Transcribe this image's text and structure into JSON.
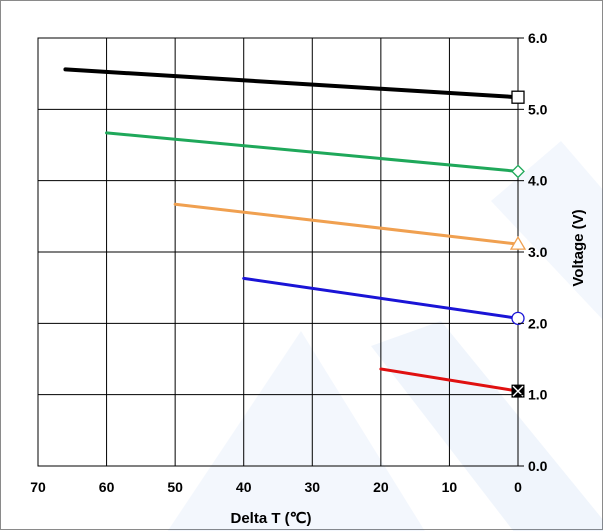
{
  "chart_data": {
    "type": "line",
    "xlabel": "Delta T (℃)",
    "ylabel": "Voltage (V)",
    "xlim": [
      70,
      0
    ],
    "ylim": [
      0,
      6
    ],
    "x_ticks": [
      "70",
      "60",
      "50",
      "40",
      "30",
      "20",
      "10",
      "0"
    ],
    "y_ticks": [
      "0.0",
      "1.0",
      "2.0",
      "3.0",
      "4.0",
      "5.0",
      "6.0"
    ],
    "grid": true,
    "watermark_color": "#2f6fd6",
    "series": [
      {
        "x": [
          66,
          0
        ],
        "y": [
          5.56,
          5.17
        ],
        "color": "#000000",
        "marker": "square-open"
      },
      {
        "x": [
          60,
          0
        ],
        "y": [
          4.67,
          4.13
        ],
        "color": "#1fa85a",
        "marker": "diamond-open"
      },
      {
        "x": [
          50,
          0
        ],
        "y": [
          3.67,
          3.11
        ],
        "color": "#f0a050",
        "marker": "triangle-open"
      },
      {
        "x": [
          40,
          0
        ],
        "y": [
          2.63,
          2.07
        ],
        "color": "#1a14d6",
        "marker": "circle-open"
      },
      {
        "x": [
          20,
          0
        ],
        "y": [
          1.36,
          1.05
        ],
        "color": "#e01010",
        "marker": "square-x"
      }
    ]
  }
}
